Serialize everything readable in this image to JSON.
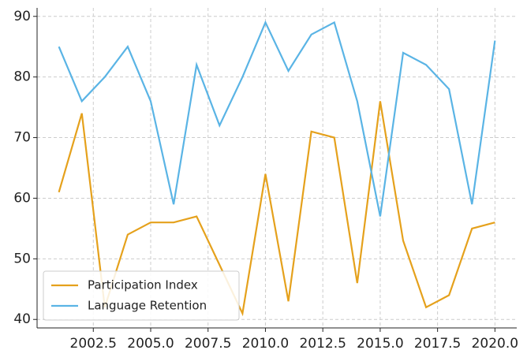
{
  "chart_data": {
    "type": "line",
    "x": [
      2001,
      2002,
      2003,
      2004,
      2005,
      2006,
      2007,
      2008,
      2009,
      2010,
      2011,
      2012,
      2013,
      2014,
      2015,
      2016,
      2017,
      2018,
      2019,
      2020
    ],
    "series": [
      {
        "name": "Participation Index",
        "color": "#e5a11c",
        "values": [
          61,
          74,
          42,
          54,
          56,
          56,
          57,
          49,
          41,
          64,
          43,
          71,
          70,
          46,
          76,
          53,
          42,
          44,
          55,
          56
        ]
      },
      {
        "name": "Language Retention",
        "color": "#5ab4e5",
        "values": [
          85,
          76,
          80,
          85,
          76,
          59,
          82,
          72,
          80,
          89,
          81,
          87,
          89,
          76,
          57,
          84,
          82,
          78,
          59,
          86
        ]
      }
    ],
    "xlim": [
      2000.05,
      2020.95
    ],
    "xticks": [
      2002.5,
      {
        "value": 2005,
        "label": "2005.0"
      },
      2007.5,
      {
        "value": 2010,
        "label": "2010.0"
      },
      2012.5,
      {
        "value": 2015,
        "label": "2015.0"
      },
      2017.5,
      {
        "value": 2020,
        "label": "2020.0"
      }
    ],
    "ylim": [
      38.6,
      91.4
    ],
    "yticks": [
      40,
      50,
      60,
      70,
      80,
      90
    ],
    "grid": true,
    "legend": "lower left"
  }
}
